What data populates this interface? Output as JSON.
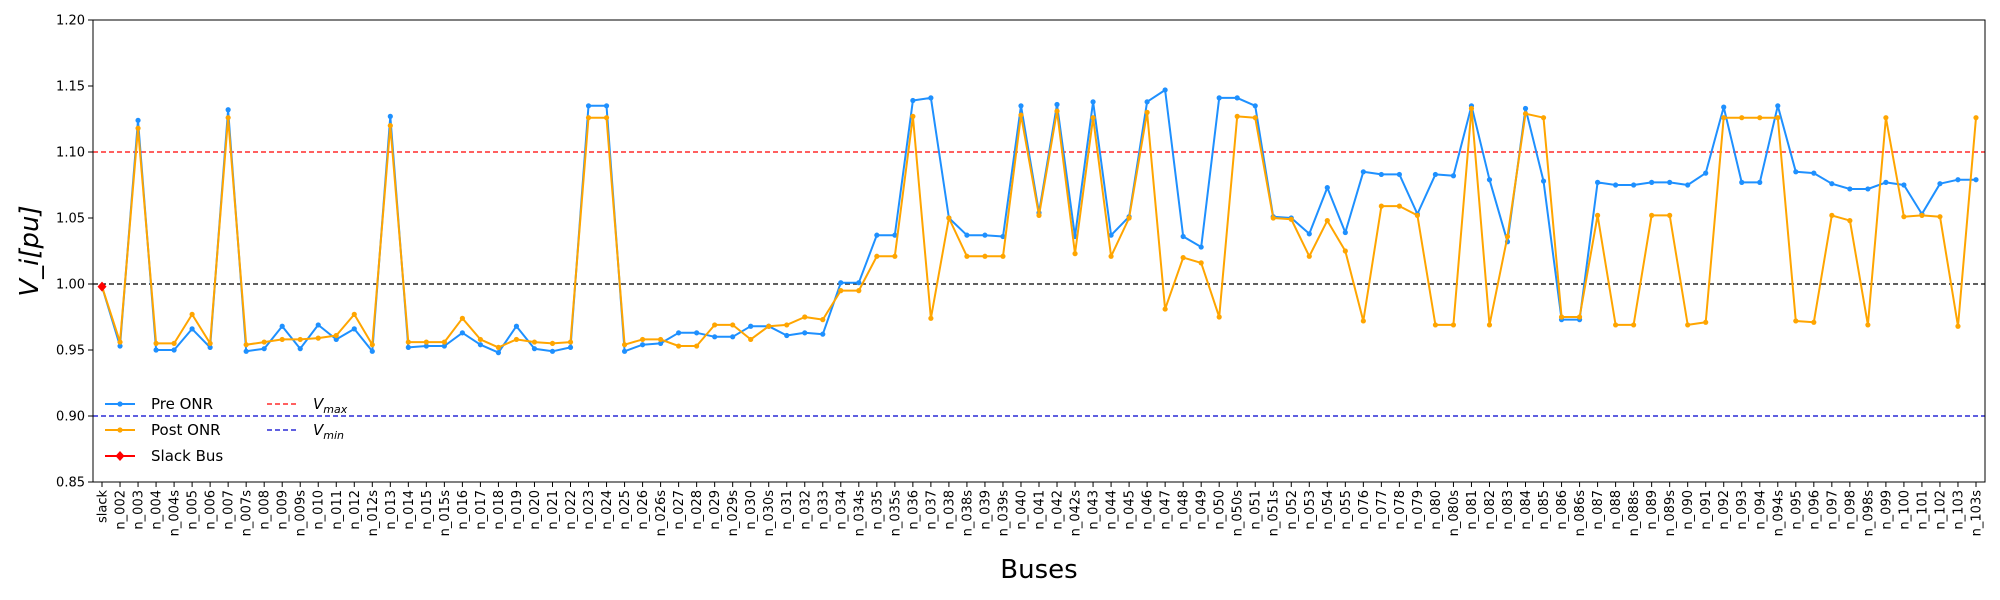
{
  "chart_data": {
    "type": "line",
    "xlabel": "Buses",
    "ylabel": "V_i[pu]",
    "ylim": [
      0.85,
      1.2
    ],
    "yticks": [
      "0.85",
      "0.90",
      "0.95",
      "1.00",
      "1.05",
      "1.10",
      "1.15",
      "1.20"
    ],
    "grid": false,
    "legend_position": "lower-left",
    "categories": [
      "slack",
      "n_002",
      "n_003",
      "n_004",
      "n_004s",
      "n_005",
      "n_006",
      "n_007",
      "n_007s",
      "n_008",
      "n_009",
      "n_009s",
      "n_010",
      "n_011",
      "n_012",
      "n_012s",
      "n_013",
      "n_014",
      "n_015",
      "n_015s",
      "n_016",
      "n_017",
      "n_018",
      "n_019",
      "n_020",
      "n_021",
      "n_022",
      "n_023",
      "n_024",
      "n_025",
      "n_026",
      "n_026s",
      "n_027",
      "n_028",
      "n_029",
      "n_029s",
      "n_030",
      "n_030s",
      "n_031",
      "n_032",
      "n_033",
      "n_034",
      "n_034s",
      "n_035",
      "n_035s",
      "n_036",
      "n_037",
      "n_038",
      "n_038s",
      "n_039",
      "n_039s",
      "n_040",
      "n_041",
      "n_042",
      "n_042s",
      "n_043",
      "n_044",
      "n_045",
      "n_046",
      "n_047",
      "n_048",
      "n_049",
      "n_050",
      "n_050s",
      "n_051",
      "n_051s",
      "n_052",
      "n_053",
      "n_054",
      "n_055",
      "n_076",
      "n_077",
      "n_078",
      "n_079",
      "n_080",
      "n_080s",
      "n_081",
      "n_082",
      "n_083",
      "n_084",
      "n_085",
      "n_086",
      "n_086s",
      "n_087",
      "n_088",
      "n_088s",
      "n_089",
      "n_089s",
      "n_090",
      "n_091",
      "n_092",
      "n_093",
      "n_094",
      "n_094s",
      "n_095",
      "n_096",
      "n_097",
      "n_098",
      "n_098s",
      "n_099",
      "n_100",
      "n_101",
      "n_102",
      "n_103",
      "n_103s"
    ],
    "highlighted_categories": [
      "n_003",
      "n_007",
      "n_013",
      "n_023",
      "n_024",
      "n_036",
      "n_040",
      "n_042",
      "n_043",
      "n_046",
      "n_050s",
      "n_051",
      "n_081",
      "n_084",
      "n_085",
      "n_092",
      "n_093",
      "n_094",
      "n_094s",
      "n_099",
      "n_103s"
    ],
    "highlight_color": "#ff0000",
    "series": [
      {
        "name": "Pre ONR",
        "color": "#1e90ff",
        "values": [
          0.998,
          0.953,
          1.124,
          0.95,
          0.95,
          0.966,
          0.952,
          1.132,
          0.949,
          0.951,
          0.968,
          0.951,
          0.969,
          0.958,
          0.966,
          0.949,
          1.127,
          0.952,
          0.953,
          0.953,
          0.963,
          0.954,
          0.948,
          0.968,
          0.951,
          0.949,
          0.952,
          1.135,
          1.135,
          0.949,
          0.954,
          0.955,
          0.963,
          0.963,
          0.96,
          0.96,
          0.968,
          0.968,
          0.961,
          0.963,
          0.962,
          1.001,
          1.001,
          1.037,
          1.037,
          1.139,
          1.141,
          1.05,
          1.037,
          1.037,
          1.036,
          1.135,
          1.054,
          1.136,
          1.036,
          1.138,
          1.037,
          1.051,
          1.138,
          1.147,
          1.036,
          1.028,
          1.141,
          1.141,
          1.135,
          1.051,
          1.05,
          1.038,
          1.073,
          1.039,
          1.085,
          1.083,
          1.083,
          1.053,
          1.083,
          1.082,
          1.135,
          1.079,
          1.032,
          1.133,
          1.078,
          0.973,
          0.973,
          1.077,
          1.075,
          1.075,
          1.077,
          1.077,
          1.075,
          1.084,
          1.134,
          1.077,
          1.077,
          1.135,
          1.085,
          1.084,
          1.076,
          1.072,
          1.072,
          1.077,
          1.075,
          1.053,
          1.076,
          1.079,
          1.079
        ]
      },
      {
        "name": "Post ONR",
        "color": "#ffa500",
        "values": [
          0.998,
          0.956,
          1.118,
          0.955,
          0.955,
          0.977,
          0.955,
          1.126,
          0.954,
          0.956,
          0.958,
          0.958,
          0.959,
          0.961,
          0.977,
          0.954,
          1.12,
          0.956,
          0.956,
          0.956,
          0.974,
          0.958,
          0.952,
          0.958,
          0.956,
          0.955,
          0.956,
          1.126,
          1.126,
          0.954,
          0.958,
          0.958,
          0.953,
          0.953,
          0.969,
          0.969,
          0.958,
          0.968,
          0.969,
          0.975,
          0.973,
          0.995,
          0.995,
          1.021,
          1.021,
          1.127,
          0.974,
          1.05,
          1.021,
          1.021,
          1.021,
          1.128,
          1.052,
          1.131,
          1.023,
          1.126,
          1.021,
          1.05,
          1.13,
          0.981,
          1.02,
          1.016,
          0.975,
          1.127,
          1.126,
          1.05,
          1.049,
          1.021,
          1.048,
          1.025,
          0.972,
          1.059,
          1.059,
          1.052,
          0.969,
          0.969,
          1.133,
          0.969,
          1.036,
          1.129,
          1.126,
          0.975,
          0.975,
          1.052,
          0.969,
          0.969,
          1.052,
          1.052,
          0.969,
          0.971,
          1.126,
          1.126,
          1.126,
          1.126,
          0.972,
          0.971,
          1.052,
          1.048,
          0.969,
          1.126,
          1.051,
          1.052,
          1.051,
          0.968,
          1.126
        ]
      }
    ],
    "slack": {
      "name": "Slack Bus",
      "color": "#ff0000",
      "category": "slack",
      "value": 0.998
    },
    "reference_lines": [
      {
        "name": "V_max",
        "value": 1.1,
        "color": "#ff0000"
      },
      {
        "name": "V_min",
        "value": 0.9,
        "color": "#0000cd"
      },
      {
        "name": "",
        "value": 1.0,
        "color": "#000000"
      }
    ]
  }
}
